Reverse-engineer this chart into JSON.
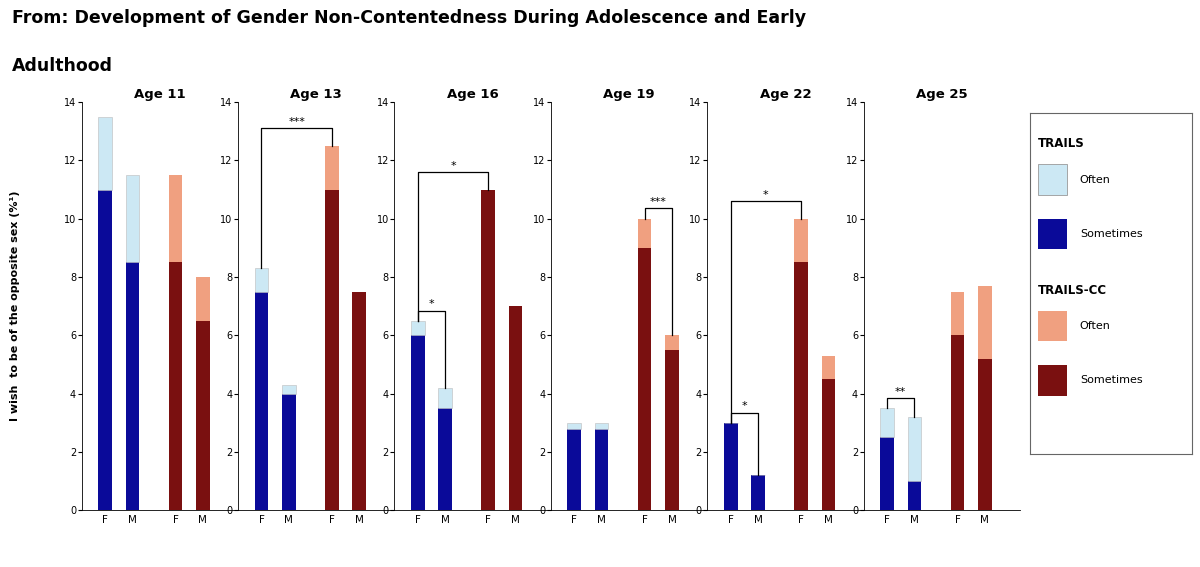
{
  "title_line1": "From: Development of Gender Non-Contentedness During Adolescence and Early",
  "title_line2": "Adulthood",
  "ylabel": "I wish  to be of the opposite sex (%¹)",
  "ages": [
    "Age 11",
    "Age 13",
    "Age 16",
    "Age 19",
    "Age 22",
    "Age 25"
  ],
  "ylim": [
    0,
    14
  ],
  "yticks": [
    0,
    2,
    4,
    6,
    8,
    10,
    12,
    14
  ],
  "trails_often_color": "#cce8f4",
  "trails_sometimes_color": "#0a0a99",
  "trailscc_often_color": "#f0a080",
  "trailscc_sometimes_color": "#7a1010",
  "data": {
    "Age 11": {
      "F_TRAILS_sometimes": 11.0,
      "F_TRAILS_often": 2.5,
      "M_TRAILS_sometimes": 8.5,
      "M_TRAILS_often": 3.0,
      "F_CC_sometimes": 8.5,
      "F_CC_often": 3.0,
      "M_CC_sometimes": 6.5,
      "M_CC_often": 1.5,
      "sig_FM_trails": null,
      "sig_FM_cc": null,
      "sig_F_trails_cc": null,
      "sig_M_trails_cc": null
    },
    "Age 13": {
      "F_TRAILS_sometimes": 7.5,
      "F_TRAILS_often": 0.8,
      "M_TRAILS_sometimes": 4.0,
      "M_TRAILS_often": 0.3,
      "F_CC_sometimes": 11.0,
      "F_CC_often": 1.5,
      "M_CC_sometimes": 7.5,
      "M_CC_often": 0.0,
      "sig_FM_trails": null,
      "sig_FM_cc": null,
      "sig_F_trails_cc": "***",
      "sig_M_trails_cc": null
    },
    "Age 16": {
      "F_TRAILS_sometimes": 6.0,
      "F_TRAILS_often": 0.5,
      "M_TRAILS_sometimes": 3.5,
      "M_TRAILS_often": 0.7,
      "F_CC_sometimes": 11.0,
      "F_CC_often": 0.0,
      "M_CC_sometimes": 7.0,
      "M_CC_often": 0.0,
      "sig_FM_trails": "*",
      "sig_FM_cc": null,
      "sig_F_trails_cc": "*",
      "sig_M_trails_cc": null
    },
    "Age 19": {
      "F_TRAILS_sometimes": 2.8,
      "F_TRAILS_often": 0.2,
      "M_TRAILS_sometimes": 2.8,
      "M_TRAILS_often": 0.2,
      "F_CC_sometimes": 9.0,
      "F_CC_often": 1.0,
      "M_CC_sometimes": 5.5,
      "M_CC_often": 0.5,
      "sig_FM_trails": null,
      "sig_FM_cc": "***",
      "sig_F_trails_cc": null,
      "sig_M_trails_cc": null
    },
    "Age 22": {
      "F_TRAILS_sometimes": 3.0,
      "F_TRAILS_often": 0.0,
      "M_TRAILS_sometimes": 1.2,
      "M_TRAILS_often": 0.0,
      "F_CC_sometimes": 8.5,
      "F_CC_often": 1.5,
      "M_CC_sometimes": 4.5,
      "M_CC_often": 0.8,
      "sig_FM_trails": "*",
      "sig_FM_cc": null,
      "sig_F_trails_cc": "*",
      "sig_M_trails_cc": null
    },
    "Age 25": {
      "F_TRAILS_sometimes": 2.5,
      "F_TRAILS_often": 1.0,
      "M_TRAILS_sometimes": 1.0,
      "M_TRAILS_often": 2.2,
      "F_CC_sometimes": 6.0,
      "F_CC_often": 1.5,
      "M_CC_sometimes": 5.2,
      "M_CC_often": 2.5,
      "sig_FM_trails": "**",
      "sig_FM_cc": null,
      "sig_F_trails_cc": null,
      "sig_M_trails_cc": null
    }
  },
  "background_color": "#ffffff"
}
